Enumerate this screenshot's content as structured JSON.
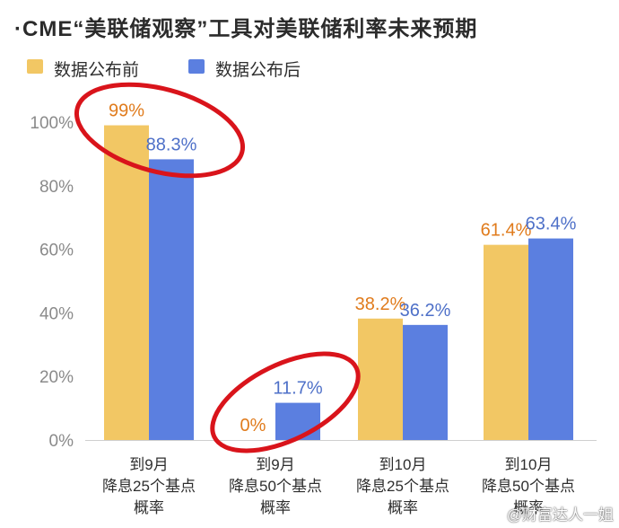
{
  "title": "·CME“美联储观察”工具对美联储利率未来预期",
  "watermark": "@财富达人一姐",
  "colors": {
    "before": "#f2c764",
    "after": "#5b7fe0",
    "before_label": "#e07b1c",
    "after_label": "#4e70c8",
    "annotation": "#d9141b",
    "axis_text": "#8a8a8a",
    "grid": "#e6e6e6"
  },
  "chart_data": {
    "type": "bar",
    "categories": [
      [
        "到9月",
        "降息25个基点",
        "概率"
      ],
      [
        "到9月",
        "降息50个基点",
        "概率"
      ],
      [
        "到10月",
        "降息25个基点",
        "概率"
      ],
      [
        "到10月",
        "降息50个基点",
        "概率"
      ]
    ],
    "series": [
      {
        "name": "数据公布前",
        "values": [
          99,
          0,
          38.2,
          61.4
        ],
        "labels": [
          "99%",
          "0%",
          "38.2%",
          "61.4%"
        ]
      },
      {
        "name": "数据公布后",
        "values": [
          88.3,
          11.7,
          36.2,
          63.4
        ],
        "labels": [
          "88.3%",
          "11.7%",
          "36.2%",
          "63.4%"
        ]
      }
    ],
    "yticks": [
      "0%",
      "20%",
      "40%",
      "60%",
      "80%",
      "100%"
    ],
    "ylim": [
      0,
      100
    ],
    "legend": "top-left",
    "grid": false,
    "annotations": [
      {
        "type": "ellipse",
        "category_index": 0,
        "color": "#d9141b"
      },
      {
        "type": "ellipse",
        "category_index": 1,
        "color": "#d9141b"
      }
    ]
  }
}
